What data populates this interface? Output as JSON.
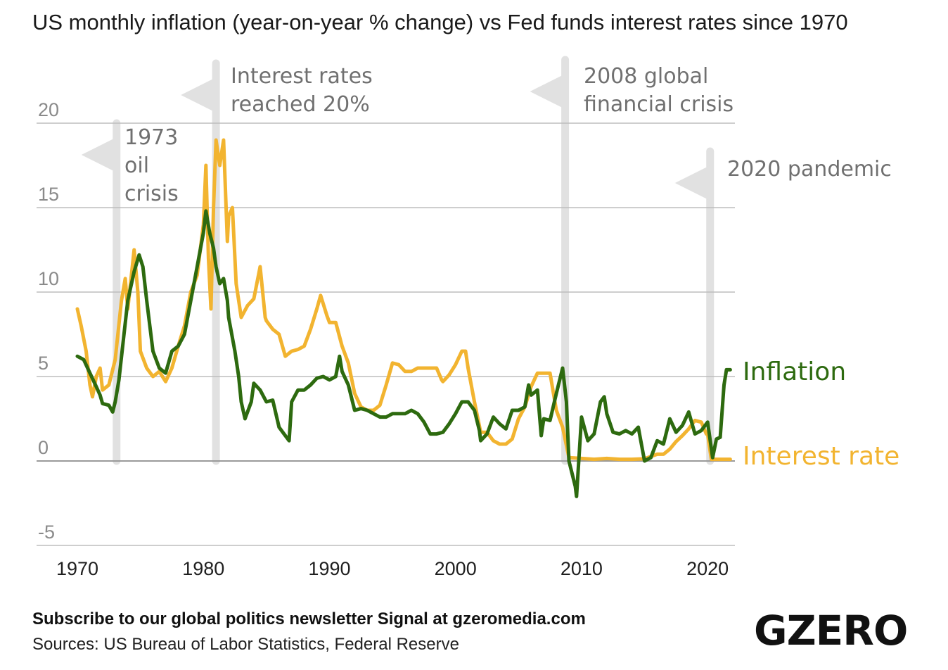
{
  "title": "US monthly inflation (year-on-year % change) vs Fed funds interest rates since 1970",
  "footer": {
    "cta": "Subscribe to our global politics newsletter Signal at gzeromedia.com",
    "sources": "Sources: US Bureau of Labor Statistics, Federal Reserve"
  },
  "logo": "GZERO",
  "colors": {
    "inflation": "#2d6a0f",
    "interest": "#f2b430",
    "annotation": "#e1e1e1",
    "grid": "#bdbdbd"
  },
  "chart_data": {
    "type": "line",
    "title": "US monthly inflation (year-on-year % change) vs Fed funds interest rates since 1970",
    "xlabel": "",
    "ylabel": "",
    "xlim": [
      1970,
      2022
    ],
    "ylim": [
      -5,
      20
    ],
    "yticks": [
      "-5",
      "0",
      "5",
      "10",
      "15",
      "20"
    ],
    "xticks": [
      "1970",
      "1980",
      "1990",
      "2000",
      "2010",
      "2020"
    ],
    "series": [
      {
        "name": "Inflation",
        "label": "Inflation",
        "points": [
          [
            1970,
            6.2
          ],
          [
            1970.5,
            6.0
          ],
          [
            1971,
            5.2
          ],
          [
            1971.5,
            4.4
          ],
          [
            1971.8,
            3.9
          ],
          [
            1972,
            3.4
          ],
          [
            1972.5,
            3.3
          ],
          [
            1972.8,
            2.9
          ],
          [
            1973,
            3.5
          ],
          [
            1973.3,
            4.8
          ],
          [
            1973.7,
            7.5
          ],
          [
            1974,
            9.5
          ],
          [
            1974.5,
            11.2
          ],
          [
            1974.9,
            12.2
          ],
          [
            1975.2,
            11.5
          ],
          [
            1975.5,
            9.5
          ],
          [
            1976,
            6.5
          ],
          [
            1976.5,
            5.5
          ],
          [
            1977,
            5.2
          ],
          [
            1977.5,
            6.5
          ],
          [
            1978,
            6.8
          ],
          [
            1978.5,
            7.5
          ],
          [
            1979,
            9.5
          ],
          [
            1979.5,
            11.5
          ],
          [
            1980,
            13.5
          ],
          [
            1980.2,
            14.8
          ],
          [
            1980.5,
            13.5
          ],
          [
            1980.8,
            12.6
          ],
          [
            1981,
            11.5
          ],
          [
            1981.3,
            10.5
          ],
          [
            1981.6,
            10.8
          ],
          [
            1981.9,
            9.5
          ],
          [
            1982,
            8.5
          ],
          [
            1982.5,
            6.5
          ],
          [
            1982.8,
            5.0
          ],
          [
            1983,
            3.5
          ],
          [
            1983.3,
            2.5
          ],
          [
            1983.8,
            3.5
          ],
          [
            1984,
            4.6
          ],
          [
            1984.5,
            4.2
          ],
          [
            1985,
            3.5
          ],
          [
            1985.5,
            3.6
          ],
          [
            1986,
            2.0
          ],
          [
            1986.4,
            1.6
          ],
          [
            1986.8,
            1.2
          ],
          [
            1987,
            3.5
          ],
          [
            1987.5,
            4.2
          ],
          [
            1988,
            4.2
          ],
          [
            1988.5,
            4.5
          ],
          [
            1989,
            4.9
          ],
          [
            1989.5,
            5.0
          ],
          [
            1990,
            4.8
          ],
          [
            1990.5,
            5.0
          ],
          [
            1990.8,
            6.2
          ],
          [
            1991,
            5.3
          ],
          [
            1991.5,
            4.5
          ],
          [
            1992,
            3.0
          ],
          [
            1992.5,
            3.1
          ],
          [
            1993,
            3.0
          ],
          [
            1993.5,
            2.8
          ],
          [
            1994,
            2.6
          ],
          [
            1994.5,
            2.6
          ],
          [
            1995,
            2.8
          ],
          [
            1995.5,
            2.8
          ],
          [
            1996,
            2.8
          ],
          [
            1996.5,
            3.0
          ],
          [
            1997,
            2.8
          ],
          [
            1997.5,
            2.3
          ],
          [
            1998,
            1.6
          ],
          [
            1998.5,
            1.6
          ],
          [
            1999,
            1.7
          ],
          [
            1999.5,
            2.2
          ],
          [
            2000,
            2.8
          ],
          [
            2000.5,
            3.5
          ],
          [
            2001,
            3.5
          ],
          [
            2001.5,
            3.0
          ],
          [
            2001.9,
            1.8
          ],
          [
            2002,
            1.2
          ],
          [
            2002.5,
            1.6
          ],
          [
            2003,
            2.6
          ],
          [
            2003.5,
            2.2
          ],
          [
            2004,
            1.9
          ],
          [
            2004.5,
            3.0
          ],
          [
            2005,
            3.0
          ],
          [
            2005.5,
            3.2
          ],
          [
            2005.8,
            4.5
          ],
          [
            2006,
            3.9
          ],
          [
            2006.5,
            4.2
          ],
          [
            2006.8,
            1.5
          ],
          [
            2007,
            2.5
          ],
          [
            2007.5,
            2.4
          ],
          [
            2008,
            4.0
          ],
          [
            2008.5,
            5.5
          ],
          [
            2008.8,
            3.5
          ],
          [
            2009,
            0.0
          ],
          [
            2009.5,
            -1.5
          ],
          [
            2009.6,
            -2.1
          ],
          [
            2010,
            2.6
          ],
          [
            2010.5,
            1.2
          ],
          [
            2011,
            1.6
          ],
          [
            2011.5,
            3.5
          ],
          [
            2011.8,
            3.8
          ],
          [
            2012,
            2.8
          ],
          [
            2012.5,
            1.7
          ],
          [
            2013,
            1.6
          ],
          [
            2013.5,
            1.8
          ],
          [
            2014,
            1.6
          ],
          [
            2014.5,
            2.0
          ],
          [
            2015,
            0.0
          ],
          [
            2015.5,
            0.2
          ],
          [
            2016,
            1.2
          ],
          [
            2016.5,
            1.0
          ],
          [
            2017,
            2.5
          ],
          [
            2017.5,
            1.7
          ],
          [
            2018,
            2.1
          ],
          [
            2018.5,
            2.9
          ],
          [
            2019,
            1.6
          ],
          [
            2019.5,
            1.8
          ],
          [
            2020,
            2.3
          ],
          [
            2020.4,
            0.2
          ],
          [
            2020.7,
            1.3
          ],
          [
            2021,
            1.4
          ],
          [
            2021.3,
            4.5
          ],
          [
            2021.5,
            5.4
          ],
          [
            2021.8,
            5.4
          ]
        ]
      },
      {
        "name": "Interest rate",
        "label": "Interest rate",
        "points": [
          [
            1970,
            9.0
          ],
          [
            1970.3,
            8.0
          ],
          [
            1970.7,
            6.5
          ],
          [
            1971,
            4.5
          ],
          [
            1971.2,
            3.8
          ],
          [
            1971.5,
            5.0
          ],
          [
            1971.8,
            5.5
          ],
          [
            1972,
            4.2
          ],
          [
            1972.5,
            4.5
          ],
          [
            1973,
            6.0
          ],
          [
            1973.5,
            9.5
          ],
          [
            1973.8,
            10.8
          ],
          [
            1974,
            9.0
          ],
          [
            1974.5,
            12.5
          ],
          [
            1974.8,
            10.0
          ],
          [
            1975,
            6.5
          ],
          [
            1975.5,
            5.5
          ],
          [
            1976,
            5.0
          ],
          [
            1976.5,
            5.3
          ],
          [
            1977,
            4.7
          ],
          [
            1977.5,
            5.5
          ],
          [
            1978,
            6.8
          ],
          [
            1978.5,
            8.0
          ],
          [
            1979,
            10.0
          ],
          [
            1979.5,
            11.0
          ],
          [
            1980,
            14.0
          ],
          [
            1980.2,
            17.5
          ],
          [
            1980.4,
            12.0
          ],
          [
            1980.6,
            9.0
          ],
          [
            1980.8,
            15.0
          ],
          [
            1981,
            19.0
          ],
          [
            1981.3,
            17.5
          ],
          [
            1981.6,
            19.0
          ],
          [
            1981.9,
            13.0
          ],
          [
            1982,
            14.5
          ],
          [
            1982.3,
            15.0
          ],
          [
            1982.6,
            10.5
          ],
          [
            1982.9,
            9.0
          ],
          [
            1983,
            8.5
          ],
          [
            1983.5,
            9.2
          ],
          [
            1984,
            9.6
          ],
          [
            1984.5,
            11.5
          ],
          [
            1984.9,
            8.5
          ],
          [
            1985,
            8.3
          ],
          [
            1985.5,
            7.8
          ],
          [
            1986,
            7.5
          ],
          [
            1986.5,
            6.2
          ],
          [
            1987,
            6.5
          ],
          [
            1987.5,
            6.6
          ],
          [
            1988,
            6.8
          ],
          [
            1988.5,
            7.8
          ],
          [
            1989,
            9.0
          ],
          [
            1989.3,
            9.8
          ],
          [
            1989.8,
            8.6
          ],
          [
            1990,
            8.2
          ],
          [
            1990.5,
            8.2
          ],
          [
            1991,
            6.8
          ],
          [
            1991.5,
            5.8
          ],
          [
            1992,
            4.0
          ],
          [
            1992.5,
            3.2
          ],
          [
            1993,
            3.0
          ],
          [
            1993.5,
            3.0
          ],
          [
            1994,
            3.3
          ],
          [
            1994.5,
            4.5
          ],
          [
            1995,
            5.8
          ],
          [
            1995.5,
            5.7
          ],
          [
            1996,
            5.3
          ],
          [
            1996.5,
            5.3
          ],
          [
            1997,
            5.5
          ],
          [
            1997.5,
            5.5
          ],
          [
            1998,
            5.5
          ],
          [
            1998.5,
            5.5
          ],
          [
            1998.9,
            4.8
          ],
          [
            1999,
            4.7
          ],
          [
            1999.5,
            5.1
          ],
          [
            2000,
            5.7
          ],
          [
            2000.5,
            6.5
          ],
          [
            2000.8,
            6.5
          ],
          [
            2001,
            5.5
          ],
          [
            2001.5,
            3.5
          ],
          [
            2002,
            1.7
          ],
          [
            2002.5,
            1.7
          ],
          [
            2003,
            1.2
          ],
          [
            2003.5,
            1.0
          ],
          [
            2004,
            1.0
          ],
          [
            2004.5,
            1.3
          ],
          [
            2005,
            2.5
          ],
          [
            2005.5,
            3.2
          ],
          [
            2006,
            4.4
          ],
          [
            2006.5,
            5.2
          ],
          [
            2007,
            5.2
          ],
          [
            2007.5,
            5.2
          ],
          [
            2008,
            3.0
          ],
          [
            2008.5,
            2.0
          ],
          [
            2009,
            0.2
          ],
          [
            2010,
            0.15
          ],
          [
            2011,
            0.1
          ],
          [
            2012,
            0.15
          ],
          [
            2013,
            0.1
          ],
          [
            2014,
            0.1
          ],
          [
            2015,
            0.13
          ],
          [
            2016,
            0.4
          ],
          [
            2016.5,
            0.4
          ],
          [
            2017,
            0.7
          ],
          [
            2017.5,
            1.15
          ],
          [
            2018,
            1.5
          ],
          [
            2018.5,
            1.9
          ],
          [
            2019,
            2.4
          ],
          [
            2019.5,
            2.3
          ],
          [
            2019.9,
            1.6
          ],
          [
            2020,
            1.6
          ],
          [
            2020.3,
            0.1
          ],
          [
            2021,
            0.1
          ],
          [
            2021.8,
            0.1
          ]
        ]
      }
    ],
    "annotations": [
      {
        "x": 1973,
        "lines": [
          "1973",
          "oil",
          "crisis"
        ]
      },
      {
        "x": 1981,
        "lines": [
          "Interest rates",
          "reached 20%"
        ]
      },
      {
        "x": 2008.7,
        "lines": [
          "2008 global",
          "financial crisis"
        ]
      },
      {
        "x": 2020.2,
        "lines": [
          "2020 pandemic"
        ]
      }
    ]
  }
}
